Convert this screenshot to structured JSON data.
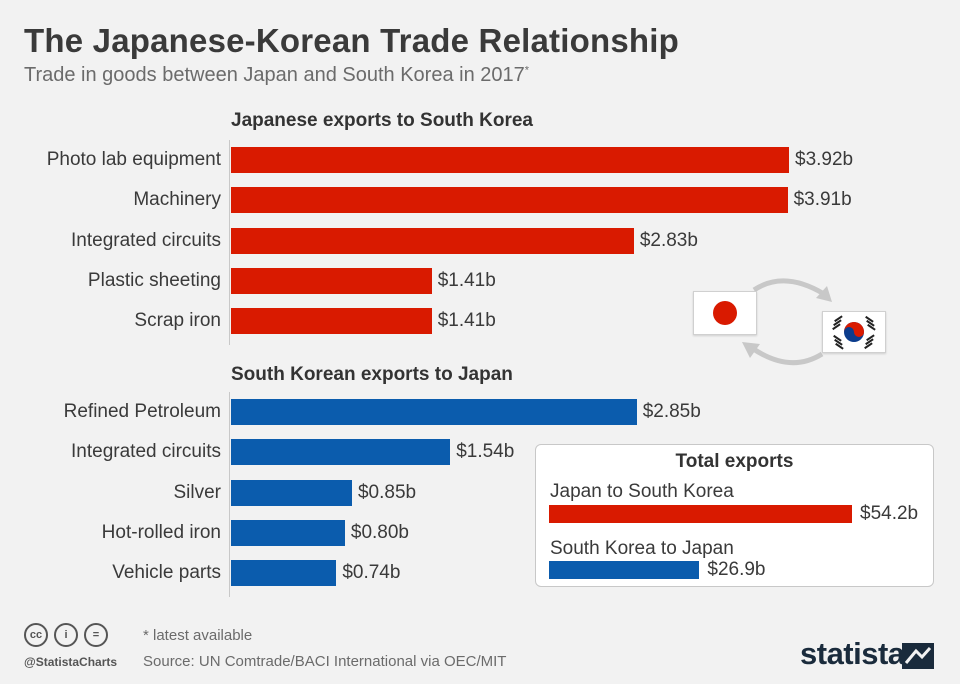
{
  "title": "The Japanese-Korean Trade Relationship",
  "subtitle": "Trade in goods between Japan and South Korea in 2017",
  "subtitle_mark": "*",
  "colors": {
    "japan_red": "#d91a00",
    "korea_blue": "#0b5cad"
  },
  "chart_data": [
    {
      "type": "bar",
      "orientation": "horizontal",
      "title": "Japanese exports to South Korea",
      "categories": [
        "Photo lab equipment",
        "Machinery",
        "Integrated circuits",
        "Plastic sheeting",
        "Scrap iron"
      ],
      "values": [
        3.92,
        3.91,
        2.83,
        1.41,
        1.41
      ],
      "value_labels": [
        "$3.92b",
        "$3.91b",
        "$2.83b",
        "$1.41b",
        "$1.41b"
      ],
      "unit": "billion USD",
      "xlim": [
        0,
        3.92
      ],
      "color": "#d91a00"
    },
    {
      "type": "bar",
      "orientation": "horizontal",
      "title": "South Korean exports to Japan",
      "categories": [
        "Refined Petroleum",
        "Integrated circuits",
        "Silver",
        "Hot-rolled iron",
        "Vehicle parts"
      ],
      "values": [
        2.85,
        1.54,
        0.85,
        0.8,
        0.74
      ],
      "value_labels": [
        "$2.85b",
        "$1.54b",
        "$0.85b",
        "$0.80b",
        "$0.74b"
      ],
      "unit": "billion USD",
      "xlim": [
        0,
        3.92
      ],
      "color": "#0b5cad"
    },
    {
      "type": "bar",
      "orientation": "horizontal",
      "title": "Total exports",
      "categories": [
        "Japan to South Korea",
        "South Korea to Japan"
      ],
      "values": [
        54.2,
        26.9
      ],
      "value_labels": [
        "$54.2b",
        "$26.9b"
      ],
      "unit": "billion USD",
      "xlim": [
        0,
        54.2
      ],
      "colors": [
        "#d91a00",
        "#0b5cad"
      ]
    }
  ],
  "flags": {
    "left": "japan-flag-icon",
    "right": "south-korea-flag-icon",
    "arrows": "exchange-arrows-icon"
  },
  "footer": {
    "note": "* latest available",
    "source": "Source: UN Comtrade/BACI International via OEC/MIT",
    "handle": "@StatistaCharts",
    "license_icons": [
      "cc",
      "by",
      "nd"
    ],
    "license_glyphs": [
      "cc",
      "i",
      "="
    ],
    "logo": "statista"
  }
}
